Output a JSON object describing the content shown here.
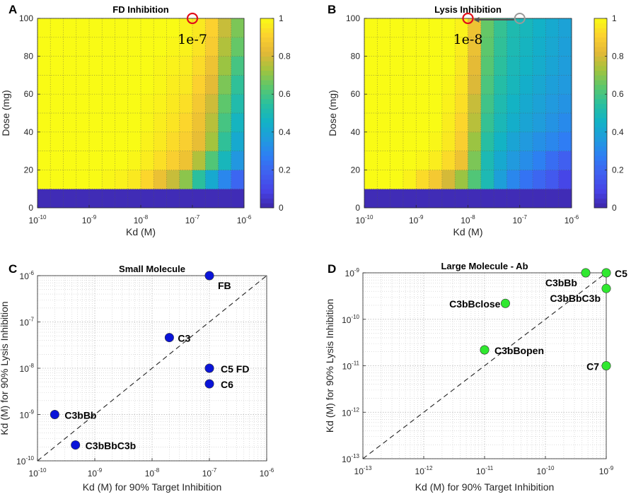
{
  "panel_labels": [
    "A",
    "B",
    "C",
    "D"
  ],
  "colorscale": [
    "#3e26a8",
    "#4743e6",
    "#4060f0",
    "#2e7ef4",
    "#209bdd",
    "#12b2c6",
    "#28bfa0",
    "#5ac76e",
    "#a1c43e",
    "#e2b837",
    "#fcd12f",
    "#f9fb15"
  ],
  "chart_data": [
    {
      "type": "heatmap",
      "title": "FD Inhibition",
      "xlabel": "Kd (M)",
      "ylabel": "Dose (mg)",
      "xscale": "log",
      "xlim_exp": [
        -10,
        -6
      ],
      "ylim": [
        0,
        100
      ],
      "xticks": [
        "-10",
        "-9",
        "-8",
        "-7",
        "-6"
      ],
      "yticks": [
        "0",
        "20",
        "40",
        "60",
        "80",
        "100"
      ],
      "clim": [
        0,
        1
      ],
      "colorbar_ticks": [
        "0",
        "0.2",
        "0.4",
        "0.6",
        "0.8",
        "1"
      ],
      "x_exponents": [
        -10.0,
        -9.75,
        -9.5,
        -9.25,
        -9.0,
        -8.75,
        -8.5,
        -8.25,
        -8.0,
        -7.75,
        -7.5,
        -7.25,
        -7.0,
        -6.75,
        -6.5,
        -6.25
      ],
      "doses": [
        0,
        10,
        20,
        30,
        40,
        50,
        60,
        70,
        80,
        90
      ],
      "values": [
        [
          0.02,
          0.02,
          0.02,
          0.02,
          0.02,
          0.02,
          0.02,
          0.02,
          0.02,
          0.02,
          0.02,
          0.02,
          0.02,
          0.02,
          0.02,
          0.02
        ],
        [
          1,
          1,
          1,
          1,
          1,
          0.99,
          0.98,
          0.96,
          0.92,
          0.85,
          0.78,
          0.7,
          0.55,
          0.42,
          0.3,
          0.2
        ],
        [
          1,
          1,
          1,
          1,
          1,
          1,
          1,
          0.99,
          0.97,
          0.94,
          0.9,
          0.86,
          0.75,
          0.62,
          0.48,
          0.35
        ],
        [
          1,
          1,
          1,
          1,
          1,
          1,
          1,
          1,
          0.98,
          0.96,
          0.93,
          0.9,
          0.84,
          0.73,
          0.56,
          0.42
        ],
        [
          1,
          1,
          1,
          1,
          1,
          1,
          1,
          1,
          0.99,
          0.97,
          0.95,
          0.92,
          0.86,
          0.76,
          0.6,
          0.47
        ],
        [
          1,
          1,
          1,
          1,
          1,
          1,
          1,
          1,
          0.99,
          0.98,
          0.96,
          0.94,
          0.88,
          0.79,
          0.64,
          0.52
        ],
        [
          1,
          1,
          1,
          1,
          1,
          1,
          1,
          1,
          1,
          0.99,
          0.97,
          0.96,
          0.91,
          0.83,
          0.68,
          0.56
        ],
        [
          1,
          1,
          1,
          1,
          1,
          1,
          1,
          1,
          1,
          0.99,
          0.98,
          0.97,
          0.93,
          0.86,
          0.72,
          0.6
        ],
        [
          1,
          1,
          1,
          1,
          1,
          1,
          1,
          1,
          1,
          1,
          0.99,
          0.98,
          0.95,
          0.89,
          0.75,
          0.65
        ],
        [
          1,
          1,
          1,
          1,
          1,
          1,
          1,
          1,
          1,
          1,
          1,
          0.98,
          0.96,
          0.91,
          0.78,
          0.68
        ]
      ],
      "annotation": {
        "text": "1e-7",
        "x_exp": -7.0,
        "y": 100
      }
    },
    {
      "type": "heatmap",
      "title": "Lysis Inhibition",
      "xlabel": "Kd (M)",
      "ylabel": "Dose (mg)",
      "xscale": "log",
      "xlim_exp": [
        -10,
        -6
      ],
      "ylim": [
        0,
        100
      ],
      "xticks": [
        "-10",
        "-9",
        "-8",
        "-7",
        "-6"
      ],
      "yticks": [
        "0",
        "20",
        "40",
        "60",
        "80",
        "100"
      ],
      "clim": [
        0,
        1
      ],
      "colorbar_ticks": [
        "0",
        "0.2",
        "0.4",
        "0.6",
        "0.8",
        "1"
      ],
      "x_exponents": [
        -10.0,
        -9.75,
        -9.5,
        -9.25,
        -9.0,
        -8.75,
        -8.5,
        -8.25,
        -8.0,
        -7.75,
        -7.5,
        -7.25,
        -7.0,
        -6.75,
        -6.5,
        -6.25
      ],
      "doses": [
        0,
        10,
        20,
        30,
        40,
        50,
        60,
        70,
        80,
        90
      ],
      "values": [
        [
          0.02,
          0.02,
          0.02,
          0.02,
          0.02,
          0.02,
          0.02,
          0.02,
          0.02,
          0.02,
          0.02,
          0.02,
          0.02,
          0.02,
          0.02,
          0.02
        ],
        [
          1,
          1,
          1,
          0.98,
          0.93,
          0.88,
          0.8,
          0.72,
          0.62,
          0.5,
          0.38,
          0.3,
          0.24,
          0.2,
          0.16,
          0.1
        ],
        [
          1,
          1,
          1,
          1,
          0.99,
          0.97,
          0.93,
          0.86,
          0.68,
          0.5,
          0.42,
          0.36,
          0.32,
          0.28,
          0.22,
          0.18
        ],
        [
          1,
          1,
          1,
          1,
          1,
          0.99,
          0.96,
          0.9,
          0.72,
          0.54,
          0.46,
          0.4,
          0.36,
          0.33,
          0.3,
          0.27
        ],
        [
          1,
          1,
          1,
          1,
          1,
          1,
          0.97,
          0.92,
          0.76,
          0.57,
          0.49,
          0.44,
          0.4,
          0.37,
          0.34,
          0.31
        ],
        [
          1,
          1,
          1,
          1,
          1,
          1,
          0.98,
          0.94,
          0.78,
          0.59,
          0.51,
          0.46,
          0.42,
          0.39,
          0.36,
          0.34
        ],
        [
          1,
          1,
          1,
          1,
          1,
          1,
          0.99,
          0.95,
          0.81,
          0.61,
          0.53,
          0.48,
          0.44,
          0.41,
          0.38,
          0.36
        ],
        [
          1,
          1,
          1,
          1,
          1,
          1,
          1,
          0.96,
          0.83,
          0.63,
          0.55,
          0.49,
          0.46,
          0.43,
          0.4,
          0.37
        ],
        [
          1,
          1,
          1,
          1,
          1,
          1,
          1,
          0.97,
          0.85,
          0.64,
          0.56,
          0.5,
          0.47,
          0.44,
          0.41,
          0.38
        ],
        [
          1,
          1,
          1,
          1,
          1,
          1,
          1,
          0.98,
          0.86,
          0.65,
          0.57,
          0.51,
          0.48,
          0.45,
          0.42,
          0.39
        ]
      ],
      "annotation": {
        "text": "1e-8",
        "x_exp": -8.0,
        "y": 100,
        "arrow_from_x_exp": -7.0
      }
    },
    {
      "type": "scatter",
      "title": "Small Molecule",
      "xlabel": "Kd (M) for 90% Target Inhibition",
      "ylabel": "Kd (M) for 90% Lysis Inhibition",
      "xscale": "log",
      "yscale": "log",
      "xlim_exp": [
        -10,
        -6
      ],
      "ylim_exp": [
        -10,
        -6
      ],
      "xticks": [
        "-10",
        "-9",
        "-8",
        "-7",
        "-6"
      ],
      "yticks": [
        "-10",
        "-9",
        "-8",
        "-7",
        "-6"
      ],
      "marker_color": "#0a14d8",
      "diagonal": true,
      "points": [
        {
          "label": "FB",
          "x": 1e-07,
          "y": 1e-06
        },
        {
          "label": "C3",
          "x": 2e-08,
          "y": 4.6e-08
        },
        {
          "label": "C5 FD",
          "x": 1e-07,
          "y": 1e-08
        },
        {
          "label": "C6",
          "x": 1e-07,
          "y": 4.6e-09
        },
        {
          "label": "C3bBb",
          "x": 2e-10,
          "y": 1e-09
        },
        {
          "label": "C3bBbC3b",
          "x": 4.6e-10,
          "y": 2.2e-10
        }
      ]
    },
    {
      "type": "scatter",
      "title": "Large Molecule - Ab",
      "xlabel": "Kd (M) for 90% Target Inhibition",
      "ylabel": "Kd (M) for 90% Lysis Inhibition",
      "xscale": "log",
      "yscale": "log",
      "xlim_exp": [
        -13,
        -9
      ],
      "ylim_exp": [
        -13,
        -9
      ],
      "xticks": [
        "-13",
        "-12",
        "-11",
        "-10",
        "-9"
      ],
      "yticks": [
        "-13",
        "-12",
        "-11",
        "-10",
        "-9"
      ],
      "marker_color": "#2fe82f",
      "diagonal": true,
      "points": [
        {
          "label": "C3bBb",
          "x": 4.6e-10,
          "y": 1e-09
        },
        {
          "label": "C5",
          "x": 1e-09,
          "y": 1e-09
        },
        {
          "label": "C3bBbC3b",
          "x": 1e-09,
          "y": 4.6e-10
        },
        {
          "label": "C3bBclose",
          "x": 2.2e-11,
          "y": 2.2e-10
        },
        {
          "label": "C3bBopen",
          "x": 1e-11,
          "y": 2.2e-11
        },
        {
          "label": "C7",
          "x": 1e-09,
          "y": 1e-11
        }
      ]
    }
  ]
}
